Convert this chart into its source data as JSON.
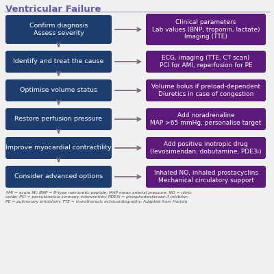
{
  "title": "Ventricular Failure",
  "title_color": "#5b5ea6",
  "bg_color": "#f0f0f0",
  "left_boxes": [
    "Confirm diagnosis\nAssess severity",
    "Identify and treat the cause",
    "Optimise volume status",
    "Restore perfusion pressure",
    "Improve myocardial contractility",
    "Consider advanced options"
  ],
  "right_boxes": [
    "Clinical parameters\nLab values (BNP, troponin, lactate)\nImaging (TTE)",
    "ECG, imaging (TTE, CT scan)\nPCI for AMI, reperfusion for PE",
    "Volume bolus if preload-dependent\nDiuretics in case of congestion",
    "Add noradrenaline\nMAP >65 mmHg, personalise target",
    "Add positive inotropic drug\n(levosimendan, dobutamine, PDE3i)",
    "Inhaled NO, inhaled prostacyclins\nMechanical circulatory support"
  ],
  "left_color": "#1c3d6e",
  "right_color": "#5c1a7a",
  "text_color": "#ffffff",
  "arrow_color": "#7a6a7a",
  "line_color": "#8888aa",
  "footnote": "AMI = acute MI; BNP = B-type natriuretic peptide; MAP mean arterial pressure; NO = nitric\noxide; PCI = percutaneous coronary intervention; PDE3i = phosphodiesterase-3 inhibitor;\nPE = pulmonary embolism; TTE = transthoracic echocardiography. Adapted from Harjola",
  "footnote_color": "#444444",
  "left_box_heights": [
    38,
    28,
    28,
    28,
    28,
    28
  ],
  "right_box_heights": [
    42,
    32,
    32,
    32,
    32,
    32
  ]
}
